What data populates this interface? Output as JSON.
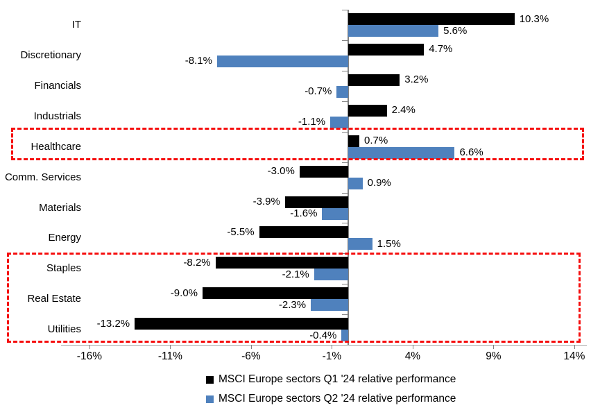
{
  "chart_data": {
    "type": "bar",
    "orientation": "horizontal",
    "title": "",
    "xlabel": "",
    "ylabel": "",
    "grid": false,
    "legend_position": "bottom",
    "xlim": [
      -17.8,
      14.8
    ],
    "x_ticks": [
      {
        "value": -16,
        "label": "-16%"
      },
      {
        "value": -11,
        "label": "-11%"
      },
      {
        "value": -6,
        "label": "-6%"
      },
      {
        "value": -1,
        "label": "-1%"
      },
      {
        "value": 4,
        "label": "4%"
      },
      {
        "value": 9,
        "label": "9%"
      },
      {
        "value": 14,
        "label": "14%"
      }
    ],
    "categories": [
      "IT",
      "Discretionary",
      "Financials",
      "Industrials",
      "Healthcare",
      "Comm. Services",
      "Materials",
      "Energy",
      "Staples",
      "Real Estate",
      "Utilities"
    ],
    "series": [
      {
        "name": "MSCI Europe sectors Q1 '24 relative performance",
        "color": "#000000",
        "values": [
          10.3,
          4.7,
          3.2,
          2.4,
          0.7,
          -3.0,
          -3.9,
          -5.5,
          -8.2,
          -9.0,
          -13.2
        ],
        "labels": [
          "10.3%",
          "4.7%",
          "3.2%",
          "2.4%",
          "0.7%",
          "-3.0%",
          "-3.9%",
          "-5.5%",
          "-8.2%",
          "-9.0%",
          "-13.2%"
        ]
      },
      {
        "name": "MSCI Europe sectors Q2 '24 relative performance",
        "color": "#4F81BD",
        "values": [
          5.6,
          -8.1,
          -0.7,
          -1.1,
          6.6,
          0.9,
          -1.6,
          1.5,
          -2.1,
          -2.3,
          -0.4
        ],
        "labels": [
          "5.6%",
          "-8.1%",
          "-0.7%",
          "-1.1%",
          "6.6%",
          "0.9%",
          "-1.6%",
          "1.5%",
          "-2.1%",
          "-2.3%",
          "-0.4%"
        ]
      }
    ],
    "highlights": [
      {
        "categories": [
          "Healthcare"
        ],
        "color": "#F50D0D",
        "style": "dashed"
      },
      {
        "categories": [
          "Staples",
          "Real Estate",
          "Utilities"
        ],
        "color": "#F50D0D",
        "style": "dashed"
      }
    ],
    "axis_color": "#808080"
  }
}
